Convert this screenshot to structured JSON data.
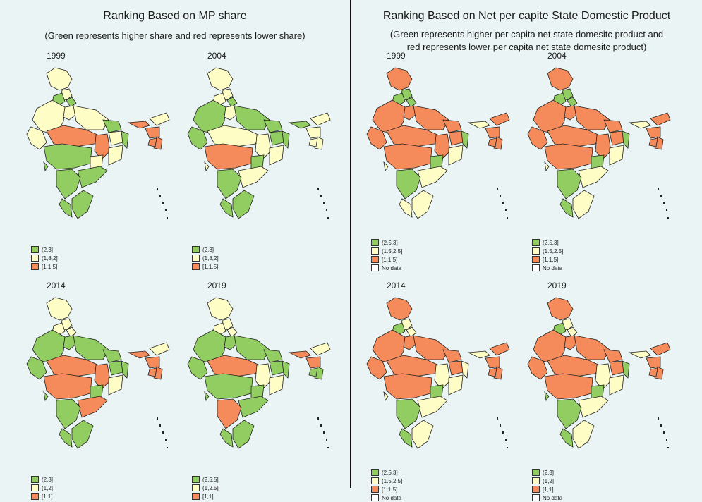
{
  "left": {
    "title": "Ranking Based on MP share",
    "subtitle": "(Green represents higher share and red represents lower share)",
    "maps": [
      {
        "year": "1999",
        "legend": [
          "(2,3]",
          "(1,8,2]",
          "[1,1.5]"
        ],
        "coloring": [
          "y",
          "y",
          "g",
          "g",
          "y",
          "y",
          "y",
          "g",
          "y",
          "g",
          "y",
          "r",
          "r",
          "y",
          "g",
          "y",
          "g",
          "g",
          "g",
          "g",
          "g",
          "r",
          "y",
          "r",
          "r",
          "r"
        ]
      },
      {
        "year": "2004",
        "legend": [
          "(2,3]",
          "(1,8,2]",
          "[1,1.5]"
        ],
        "coloring": [
          "y",
          "y",
          "y",
          "g",
          "g",
          "y",
          "g",
          "g",
          "g",
          "g",
          "g",
          "y",
          "y",
          "y",
          "r",
          "g",
          "y",
          "g",
          "y",
          "g",
          "g",
          "g",
          "y",
          "y",
          "y",
          "y"
        ]
      },
      {
        "year": "2014",
        "legend": [
          "(2,3]",
          "(1,2]",
          "[1,1]"
        ],
        "coloring": [
          "y",
          "y",
          "y",
          "y",
          "g",
          "g",
          "g",
          "g",
          "g",
          "g",
          "g",
          "r",
          "r",
          "y",
          "r",
          "g",
          "r",
          "g",
          "g",
          "g",
          "g",
          "r",
          "y",
          "r",
          "r",
          "r"
        ]
      },
      {
        "year": "2019",
        "legend": [
          "(2.5,5]",
          "(1,2.5]",
          "[1,1]"
        ],
        "coloring": [
          "y",
          "y",
          "y",
          "y",
          "g",
          "g",
          "g",
          "g",
          "g",
          "g",
          "g",
          "r",
          "y",
          "y",
          "g",
          "g",
          "g",
          "r",
          "g",
          "g",
          "g",
          "r",
          "y",
          "r",
          "g",
          "g"
        ]
      }
    ]
  },
  "right": {
    "title": "Ranking Based on Net per capite State Domestic Product",
    "subtitle_line1": "(Green represents higher per capita net state domesitc product and",
    "subtitle_line2": "red represents lower per capita net state domesitc product)",
    "maps": [
      {
        "year": "1999",
        "legend": [
          "(2.5,3]",
          "(1.5,2.5]",
          "[1,1.5]",
          "No data"
        ],
        "coloring": [
          "r",
          "g",
          "g",
          "g",
          "r",
          "r",
          "r",
          "r",
          "r",
          "g",
          "r",
          "r",
          "r",
          "y",
          "r",
          "g",
          "y",
          "g",
          "y",
          "y",
          "y",
          "y",
          "r",
          "r",
          "r",
          "r"
        ]
      },
      {
        "year": "2004",
        "legend": [
          "(2.5,3]",
          "(1.5,2.5]",
          "[1,1.5]",
          "No data"
        ],
        "coloring": [
          "r",
          "g",
          "g",
          "g",
          "r",
          "r",
          "r",
          "r",
          "r",
          "g",
          "r",
          "r",
          "r",
          "y",
          "r",
          "g",
          "y",
          "g",
          "y",
          "y",
          "g",
          "y",
          "r",
          "r",
          "r",
          "r"
        ]
      },
      {
        "year": "2014",
        "legend": [
          "(2.5,3]",
          "(1.5,2.5]",
          "[1,1.5]",
          "No data"
        ],
        "coloring": [
          "r",
          "y",
          "g",
          "y",
          "r",
          "r",
          "r",
          "r",
          "r",
          "y",
          "r",
          "r",
          "y",
          "y",
          "r",
          "g",
          "y",
          "g",
          "y",
          "y",
          "g",
          "y",
          "r",
          "r",
          "r",
          "r"
        ]
      },
      {
        "year": "2019",
        "legend": [
          "(2,3]",
          "(1,2]",
          "[1,1]",
          "No data"
        ],
        "coloring": [
          "r",
          "y",
          "g",
          "y",
          "r",
          "r",
          "r",
          "r",
          "r",
          "g",
          "r",
          "r",
          "y",
          "y",
          "r",
          "g",
          "y",
          "g",
          "g",
          "y",
          "g",
          "y",
          "r",
          "r",
          "r",
          "r"
        ]
      }
    ]
  },
  "colors": {
    "g": "#92cd62",
    "y": "#fdfdc5",
    "r": "#f58a5a",
    "w": "#ffffff",
    "border": "#222222"
  }
}
